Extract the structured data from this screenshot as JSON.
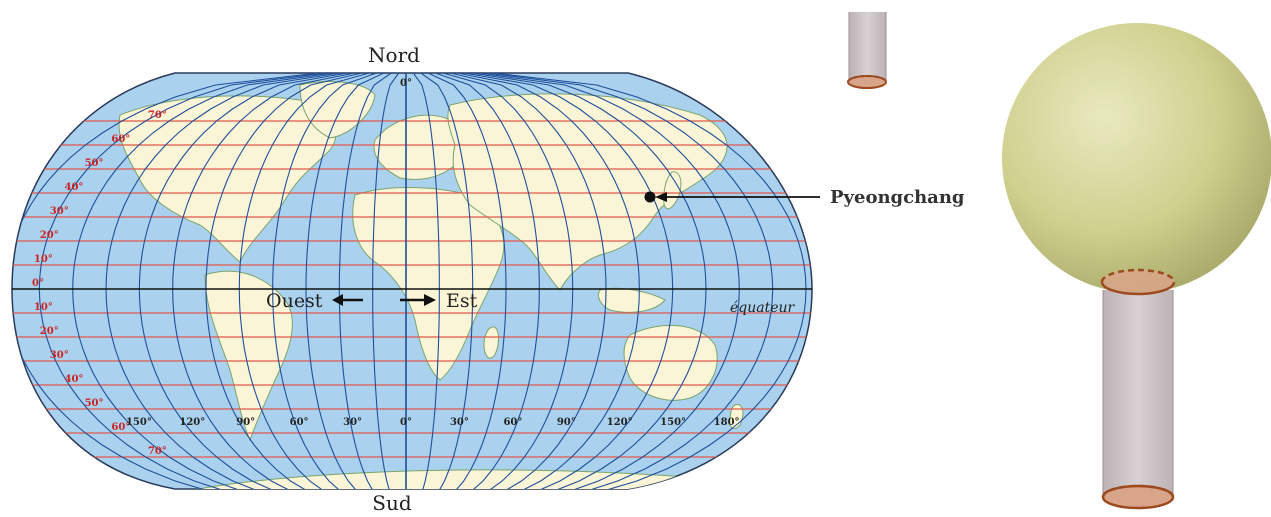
{
  "map": {
    "north_label": "Nord",
    "south_label": "Sud",
    "west_label": "Ouest",
    "east_label": "Est",
    "equator_label": "équateur",
    "city_label": "Pyeongchang",
    "lat_labels": [
      "70°",
      "60°",
      "50°",
      "40°",
      "30°",
      "20°",
      "10°",
      "0°",
      "10°",
      "20°",
      "30°",
      "40°",
      "50°",
      "60°",
      "70°"
    ],
    "lat_values": [
      70,
      60,
      50,
      40,
      30,
      20,
      10,
      0,
      -10,
      -20,
      -30,
      -40,
      -50,
      -60,
      -70
    ],
    "lon_labels": [
      "150°",
      "120°",
      "90°",
      "60°",
      "30°",
      "0°",
      "30°",
      "60°",
      "90°",
      "120°",
      "150°",
      "180°"
    ],
    "lon_values": [
      -150,
      -120,
      -90,
      -60,
      -30,
      0,
      30,
      60,
      90,
      120,
      150,
      180
    ],
    "top_meridian_label": "0°",
    "colors": {
      "ocean": "#aad2ef",
      "land": "#fbf5d8",
      "meridian": "#1f4f9a",
      "parallel": "#e05a4a",
      "equator": "#111111",
      "lat_text": "#cc2222"
    }
  },
  "model": {
    "sphere_color": "#cfd08e",
    "pillar_color": "#cdc3c5",
    "disk_color": "#d9a58a",
    "dash_color": "#9c4a1e"
  }
}
